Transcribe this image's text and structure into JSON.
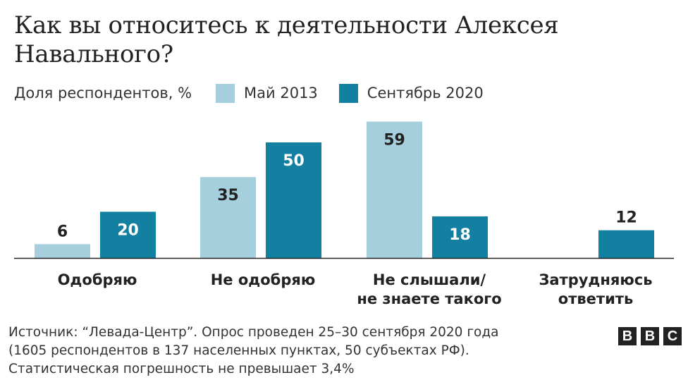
{
  "chart_data": {
    "type": "bar",
    "title": "Как вы относитесь к деятельности Алексея Навального?",
    "ylabel": "Доля респондентов, %",
    "categories": [
      [
        "Одобряю"
      ],
      [
        "Не одобряю"
      ],
      [
        "Не слышали/",
        "не знаете такого"
      ],
      [
        "Затрудняюсь",
        "ответить"
      ]
    ],
    "series": [
      {
        "name": "Май 2013",
        "color": "#a6cfdd",
        "values": [
          6,
          35,
          59,
          null
        ]
      },
      {
        "name": "Сентябрь 2020",
        "color": "#1380a1",
        "values": [
          20,
          50,
          18,
          12
        ]
      }
    ],
    "ylim": [
      0,
      60
    ],
    "grid": false,
    "legend_position": "top-left",
    "data_labels": true
  },
  "footer": {
    "source_lines": [
      "Источник: “Левада-Центр”. Опрос проведен 25–30 сентября 2020 года",
      "(1605 респондентов в 137 населенных пунктах, 50 субъектах РФ).",
      "Статистическая погрешность не превышает 3,4%"
    ],
    "logo_letters": [
      "B",
      "B",
      "C"
    ]
  },
  "colors": {
    "text": "#222222",
    "axis": "#222222",
    "label_on_light": "#222222",
    "label_on_dark": "#ffffff"
  }
}
